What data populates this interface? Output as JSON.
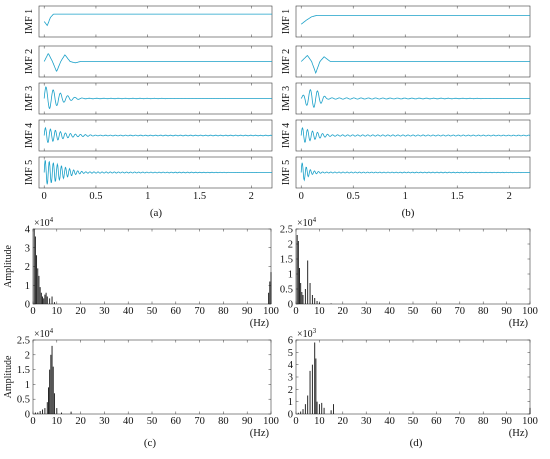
{
  "chart_data": [
    {
      "panel": "(a)",
      "type": "line",
      "xlim": [
        -0.05,
        2.2
      ],
      "x_ticks": [
        "0",
        "0.5",
        "1",
        "1.5",
        "2"
      ],
      "x_tick_values": [
        0,
        0.5,
        1,
        1.5,
        2
      ],
      "series": [
        {
          "name": "IMF 1",
          "values": [
            [
              0,
              0
            ],
            [
              0.03,
              -0.3
            ],
            [
              0.06,
              0.3
            ],
            [
              0.09,
              0.55
            ],
            [
              0.12,
              0.55
            ],
            [
              0.18,
              0.55
            ],
            [
              2.2,
              0.55
            ]
          ]
        },
        {
          "name": "IMF 2",
          "values": [
            [
              0,
              0
            ],
            [
              0.04,
              0.6
            ],
            [
              0.08,
              0.0
            ],
            [
              0.12,
              -0.75
            ],
            [
              0.16,
              0.0
            ],
            [
              0.2,
              0.5
            ],
            [
              0.25,
              0.0
            ],
            [
              0.3,
              -0.1
            ],
            [
              0.35,
              0.0
            ],
            [
              2.2,
              0.0
            ]
          ]
        },
        {
          "name": "IMF 3",
          "values": [
            [
              0,
              0.9
            ],
            [
              0.1,
              0.6
            ],
            [
              0.2,
              0.25
            ],
            [
              0.3,
              0.08
            ],
            [
              0.4,
              0.02
            ],
            [
              2.2,
              0.0
            ]
          ]
        },
        {
          "name": "IMF 4",
          "values": [
            [
              0,
              0.6
            ],
            [
              0.1,
              0.4
            ],
            [
              0.2,
              0.2
            ],
            [
              0.3,
              0.1
            ],
            [
              0.5,
              0.03
            ],
            [
              2.2,
              0.02
            ]
          ]
        },
        {
          "name": "IMF 5",
          "values": [
            [
              0,
              0.95
            ],
            [
              0.1,
              0.7
            ],
            [
              0.2,
              0.4
            ],
            [
              0.3,
              0.15
            ],
            [
              0.4,
              0.05
            ],
            [
              2.2,
              0.0
            ]
          ]
        }
      ]
    },
    {
      "panel": "(b)",
      "type": "line",
      "xlim": [
        -0.05,
        2.2
      ],
      "x_ticks": [
        "0",
        "0.5",
        "1",
        "1.5",
        "2"
      ],
      "x_tick_values": [
        0,
        0.5,
        1,
        1.5,
        2
      ],
      "series": [
        {
          "name": "IMF 1",
          "values": [
            [
              0,
              -0.2
            ],
            [
              0.05,
              0.1
            ],
            [
              0.1,
              0.35
            ],
            [
              0.15,
              0.45
            ],
            [
              0.25,
              0.45
            ],
            [
              2.2,
              0.45
            ]
          ]
        },
        {
          "name": "IMF 2",
          "values": [
            [
              0,
              0
            ],
            [
              0.06,
              0.45
            ],
            [
              0.1,
              0.0
            ],
            [
              0.14,
              -0.85
            ],
            [
              0.18,
              0.0
            ],
            [
              0.22,
              0.35
            ],
            [
              0.28,
              0.0
            ],
            [
              2.2,
              0.0
            ]
          ]
        },
        {
          "name": "IMF 3",
          "values": [
            [
              0,
              0.1
            ],
            [
              0.05,
              0.5
            ],
            [
              0.1,
              0.7
            ],
            [
              0.15,
              0.6
            ],
            [
              0.2,
              0.3
            ],
            [
              0.25,
              0.05
            ],
            [
              2.2,
              0.0
            ]
          ]
        },
        {
          "name": "IMF 4",
          "values": [
            [
              0,
              0.6
            ],
            [
              0.1,
              0.35
            ],
            [
              0.2,
              0.15
            ],
            [
              0.3,
              0.05
            ],
            [
              2.2,
              0.03
            ]
          ]
        },
        {
          "name": "IMF 5",
          "values": [
            [
              0,
              0.8
            ],
            [
              0.05,
              0.4
            ],
            [
              0.1,
              0.15
            ],
            [
              0.2,
              0.04
            ],
            [
              2.2,
              0.01
            ]
          ]
        }
      ]
    },
    {
      "panel": "(c) top",
      "type": "bar",
      "ylabel": "Amplitude",
      "y_exponent": "4",
      "xlim": [
        0,
        100
      ],
      "ylim": [
        0,
        4
      ],
      "x_ticks": [
        "0",
        "10",
        "20",
        "30",
        "40",
        "50",
        "60",
        "70",
        "80",
        "90",
        "100"
      ],
      "x_unit": "(Hz)",
      "y_ticks": [
        "0",
        "1",
        "2",
        "3",
        "4"
      ],
      "x": [
        0.5,
        1,
        1.5,
        2,
        2.5,
        3,
        3.5,
        4,
        4.5,
        5,
        5.5,
        6,
        7,
        8,
        9,
        99,
        99.5,
        100
      ],
      "values": [
        4.0,
        3.6,
        2.6,
        1.9,
        1.5,
        0.9,
        0.6,
        0.4,
        0.3,
        0.5,
        0.6,
        0.4,
        0.3,
        0.4,
        0.1,
        0.6,
        1.2,
        1.7
      ]
    },
    {
      "panel": "(d) top",
      "type": "bar",
      "y_exponent": "4",
      "xlim": [
        0,
        100
      ],
      "ylim": [
        0,
        2.5
      ],
      "x_ticks": [
        "0",
        "10",
        "20",
        "30",
        "40",
        "50",
        "60",
        "70",
        "80",
        "90",
        "100"
      ],
      "x_unit": "(Hz)",
      "y_ticks": [
        "0",
        "0.5",
        "1",
        "1.5",
        "2",
        "2.5"
      ],
      "x": [
        0.5,
        1,
        1.5,
        2,
        2.5,
        3,
        4,
        5,
        6,
        7,
        8,
        9,
        10,
        15
      ],
      "values": [
        2.3,
        2.1,
        1.2,
        0.7,
        0.4,
        0.3,
        0.5,
        1.45,
        0.7,
        0.3,
        0.2,
        0.1,
        0.05,
        0.02
      ]
    },
    {
      "panel": "(c)",
      "type": "bar",
      "ylabel": "Amplitude",
      "y_exponent": "4",
      "xlim": [
        0,
        100
      ],
      "ylim": [
        0,
        2.5
      ],
      "x_ticks": [
        "0",
        "10",
        "20",
        "30",
        "40",
        "50",
        "60",
        "70",
        "80",
        "90",
        "100"
      ],
      "x_unit": "(Hz)",
      "y_ticks": [
        "0",
        "0.5",
        "1",
        "1.5",
        "2",
        "2.5"
      ],
      "x": [
        1,
        2,
        3,
        4,
        5,
        6,
        6.5,
        7,
        7.5,
        8,
        8.5,
        9,
        10,
        12,
        16
      ],
      "values": [
        0.05,
        0.05,
        0.1,
        0.15,
        0.2,
        0.4,
        0.9,
        1.5,
        2.0,
        2.3,
        1.6,
        0.7,
        0.2,
        0.05,
        0.08
      ]
    },
    {
      "panel": "(d)",
      "type": "bar",
      "y_exponent": "3",
      "xlim": [
        0,
        100
      ],
      "ylim": [
        0,
        6
      ],
      "x_ticks": [
        "0",
        "10",
        "20",
        "30",
        "40",
        "50",
        "60",
        "70",
        "80",
        "90",
        "100"
      ],
      "x_unit": "(Hz)",
      "y_ticks": [
        "0",
        "1",
        "2",
        "3",
        "4",
        "5",
        "6"
      ],
      "x": [
        1,
        2,
        3,
        4,
        5,
        6,
        7,
        8,
        8.5,
        9,
        10,
        11,
        12,
        15,
        16,
        100
      ],
      "values": [
        0.1,
        0.2,
        0.4,
        0.8,
        1.5,
        3.5,
        4.0,
        5.8,
        4.5,
        1.0,
        0.8,
        0.9,
        0.5,
        0.3,
        0.8,
        0.5
      ]
    }
  ],
  "labels": {
    "a": "(a)",
    "b": "(b)",
    "c": "(c)",
    "d": "(d)"
  }
}
